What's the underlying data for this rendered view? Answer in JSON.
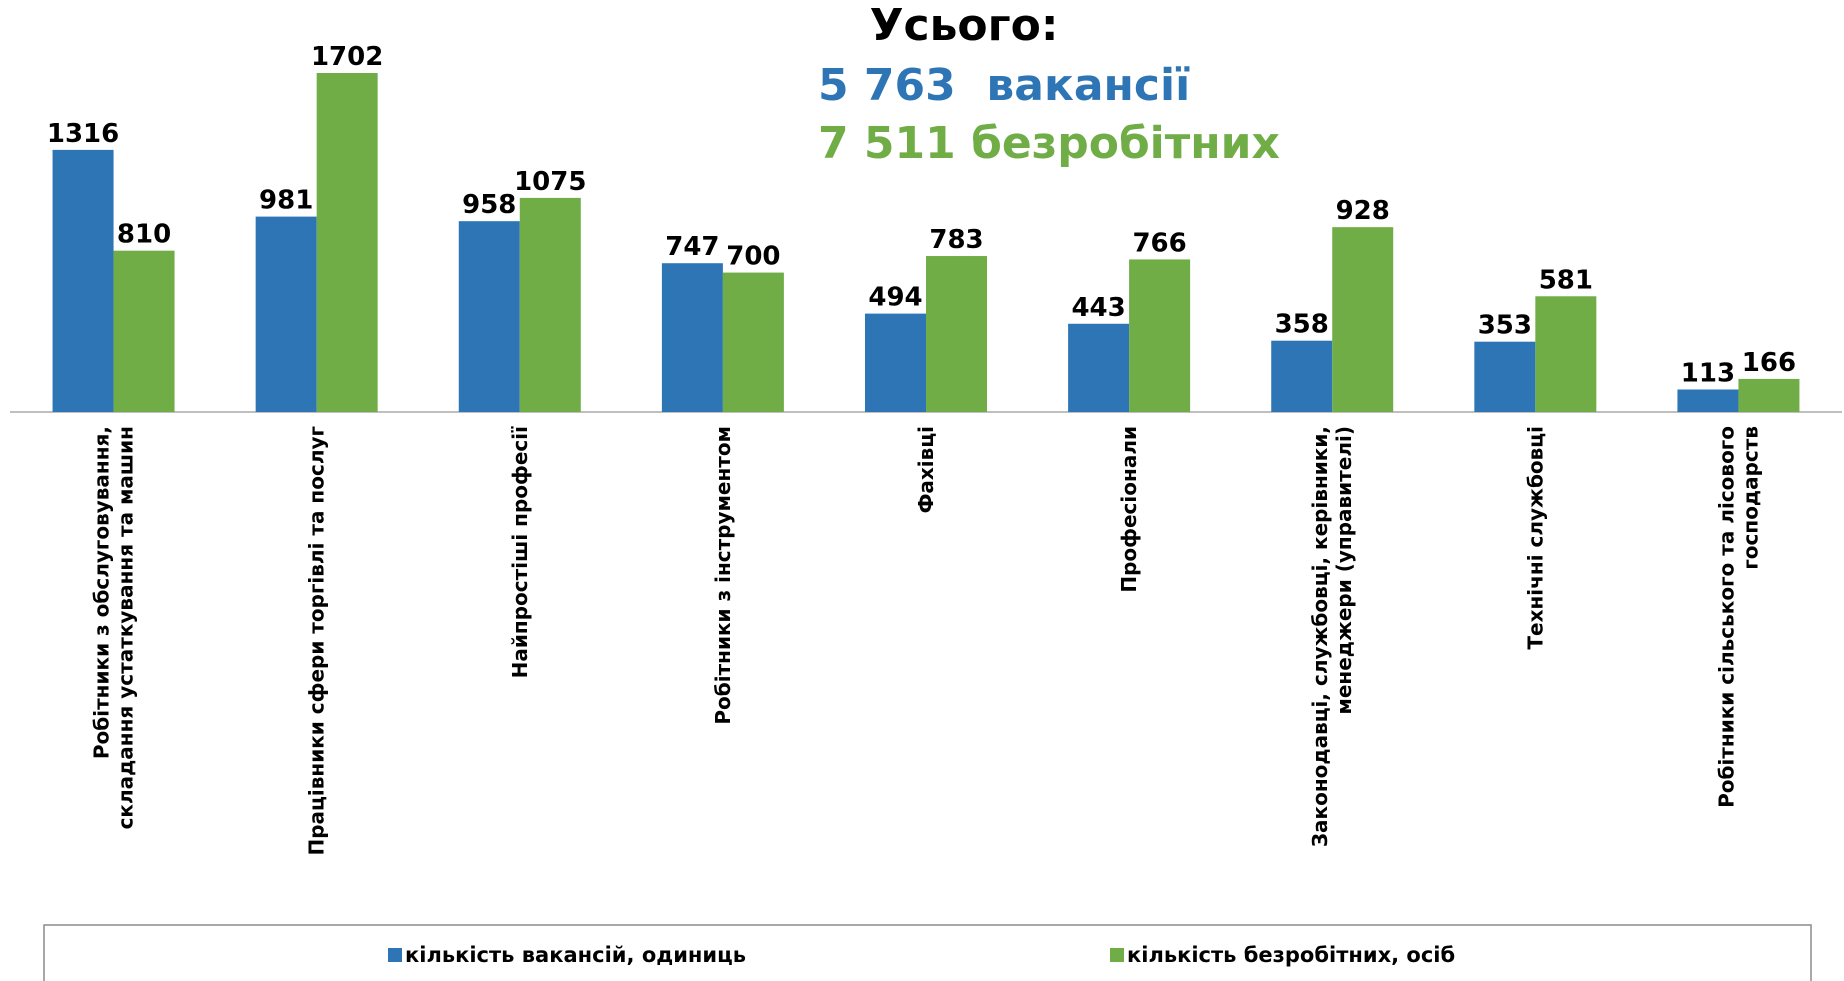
{
  "chart_data": {
    "type": "bar",
    "total_title": "Усього:",
    "total_vacancies": "5 763  вакансії",
    "total_unemployed": "7 511 безробітних",
    "categories": [
      "Робітники з обслуговування, складання устаткування та машин",
      "Працівники сфери торгівлі та послуг",
      "Найпростіші професії",
      "Робітники з інструментом",
      "Фахівці",
      "Професіонали",
      "Законодавці, службовці, керівники, менеджери (управителі)",
      "Технічні службовці",
      "Робітники сільського та лісового господарств"
    ],
    "series": [
      {
        "name": "кількість вакансій, одиниць",
        "color": "#2e75b6",
        "values": [
          1316,
          981,
          958,
          747,
          494,
          443,
          358,
          353,
          113
        ]
      },
      {
        "name": "кількість безробітних, осіб",
        "color": "#70ad47",
        "values": [
          810,
          1702,
          1075,
          700,
          783,
          766,
          928,
          581,
          166
        ]
      }
    ],
    "legend": "bottom"
  }
}
